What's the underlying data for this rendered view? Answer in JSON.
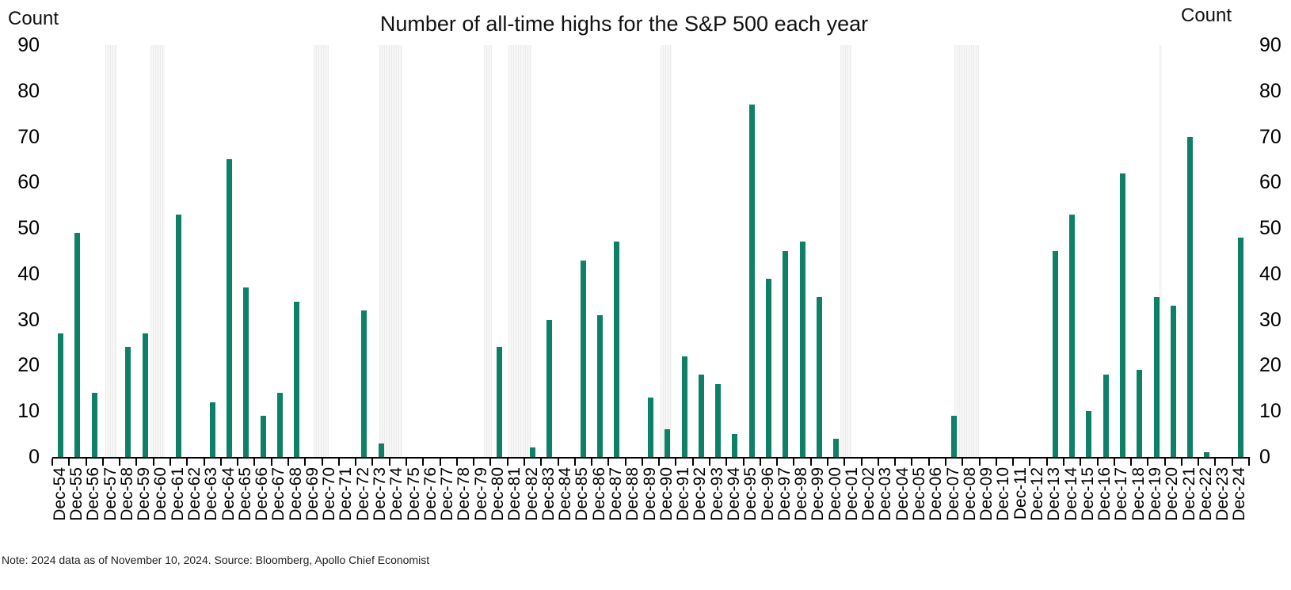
{
  "title": "Number of all-time highs for the S&P 500 each year",
  "axis": {
    "left_title": "Count",
    "right_title": "Count"
  },
  "note": "Note: 2024 data as of November 10, 2024. Source: Bloomberg, Apollo Chief Economist",
  "colors": {
    "bar": "#0e8067",
    "recession_band_light": "#f7f7f7",
    "recession_band_line": "#ebebeb",
    "axis": "#000000"
  },
  "chart_data": {
    "type": "bar",
    "title": "Number of all-time highs for the S&P 500 each year",
    "xlabel": "",
    "ylabel": "Count",
    "ylim": [
      0,
      90
    ],
    "yticks": [
      0,
      10,
      20,
      30,
      40,
      50,
      60,
      70,
      80,
      90
    ],
    "grid": false,
    "legend": false,
    "categories": [
      "Dec-54",
      "Dec-55",
      "Dec-56",
      "Dec-57",
      "Dec-58",
      "Dec-59",
      "Dec-60",
      "Dec-61",
      "Dec-62",
      "Dec-63",
      "Dec-64",
      "Dec-65",
      "Dec-66",
      "Dec-67",
      "Dec-68",
      "Dec-69",
      "Dec-70",
      "Dec-71",
      "Dec-72",
      "Dec-73",
      "Dec-74",
      "Dec-75",
      "Dec-76",
      "Dec-77",
      "Dec-78",
      "Dec-79",
      "Dec-80",
      "Dec-81",
      "Dec-82",
      "Dec-83",
      "Dec-84",
      "Dec-85",
      "Dec-86",
      "Dec-87",
      "Dec-88",
      "Dec-89",
      "Dec-90",
      "Dec-91",
      "Dec-92",
      "Dec-93",
      "Dec-94",
      "Dec-95",
      "Dec-96",
      "Dec-97",
      "Dec-98",
      "Dec-99",
      "Dec-00",
      "Dec-01",
      "Dec-02",
      "Dec-03",
      "Dec-04",
      "Dec-05",
      "Dec-06",
      "Dec-07",
      "Dec-08",
      "Dec-09",
      "Dec-10",
      "Dec-11",
      "Dec-12",
      "Dec-13",
      "Dec-14",
      "Dec-15",
      "Dec-16",
      "Dec-17",
      "Dec-18",
      "Dec-19",
      "Dec-20",
      "Dec-21",
      "Dec-22",
      "Dec-23",
      "Dec-24"
    ],
    "values": [
      27,
      49,
      14,
      0,
      24,
      27,
      0,
      53,
      0,
      12,
      65,
      37,
      9,
      14,
      34,
      0,
      0,
      0,
      32,
      3,
      0,
      0,
      0,
      0,
      0,
      0,
      24,
      0,
      2,
      30,
      0,
      43,
      31,
      47,
      0,
      13,
      6,
      22,
      18,
      16,
      5,
      77,
      39,
      45,
      47,
      35,
      4,
      0,
      0,
      0,
      0,
      0,
      0,
      9,
      0,
      0,
      0,
      0,
      0,
      45,
      53,
      10,
      18,
      62,
      19,
      35,
      33,
      70,
      1,
      0,
      48
    ],
    "recession_bands": [
      {
        "label": "recession-1957-58",
        "start": {
          "y": 1957,
          "m": 8
        },
        "end": {
          "y": 1958,
          "m": 4
        }
      },
      {
        "label": "recession-1960-61",
        "start": {
          "y": 1960,
          "m": 4
        },
        "end": {
          "y": 1961,
          "m": 2
        }
      },
      {
        "label": "recession-1969-70",
        "start": {
          "y": 1969,
          "m": 12
        },
        "end": {
          "y": 1970,
          "m": 11
        }
      },
      {
        "label": "recession-1973-75",
        "start": {
          "y": 1973,
          "m": 11
        },
        "end": {
          "y": 1975,
          "m": 3
        }
      },
      {
        "label": "recession-1980",
        "start": {
          "y": 1980,
          "m": 1
        },
        "end": {
          "y": 1980,
          "m": 7
        }
      },
      {
        "label": "recession-1981-82",
        "start": {
          "y": 1981,
          "m": 7
        },
        "end": {
          "y": 1982,
          "m": 11
        }
      },
      {
        "label": "recession-1990-91",
        "start": {
          "y": 1990,
          "m": 7
        },
        "end": {
          "y": 1991,
          "m": 3
        }
      },
      {
        "label": "recession-2001",
        "start": {
          "y": 2001,
          "m": 3
        },
        "end": {
          "y": 2001,
          "m": 11
        }
      },
      {
        "label": "recession-2007-09",
        "start": {
          "y": 2007,
          "m": 12
        },
        "end": {
          "y": 2009,
          "m": 6
        }
      },
      {
        "label": "recession-2020",
        "start": {
          "y": 2020,
          "m": 2
        },
        "end": {
          "y": 2020,
          "m": 4
        }
      }
    ]
  }
}
